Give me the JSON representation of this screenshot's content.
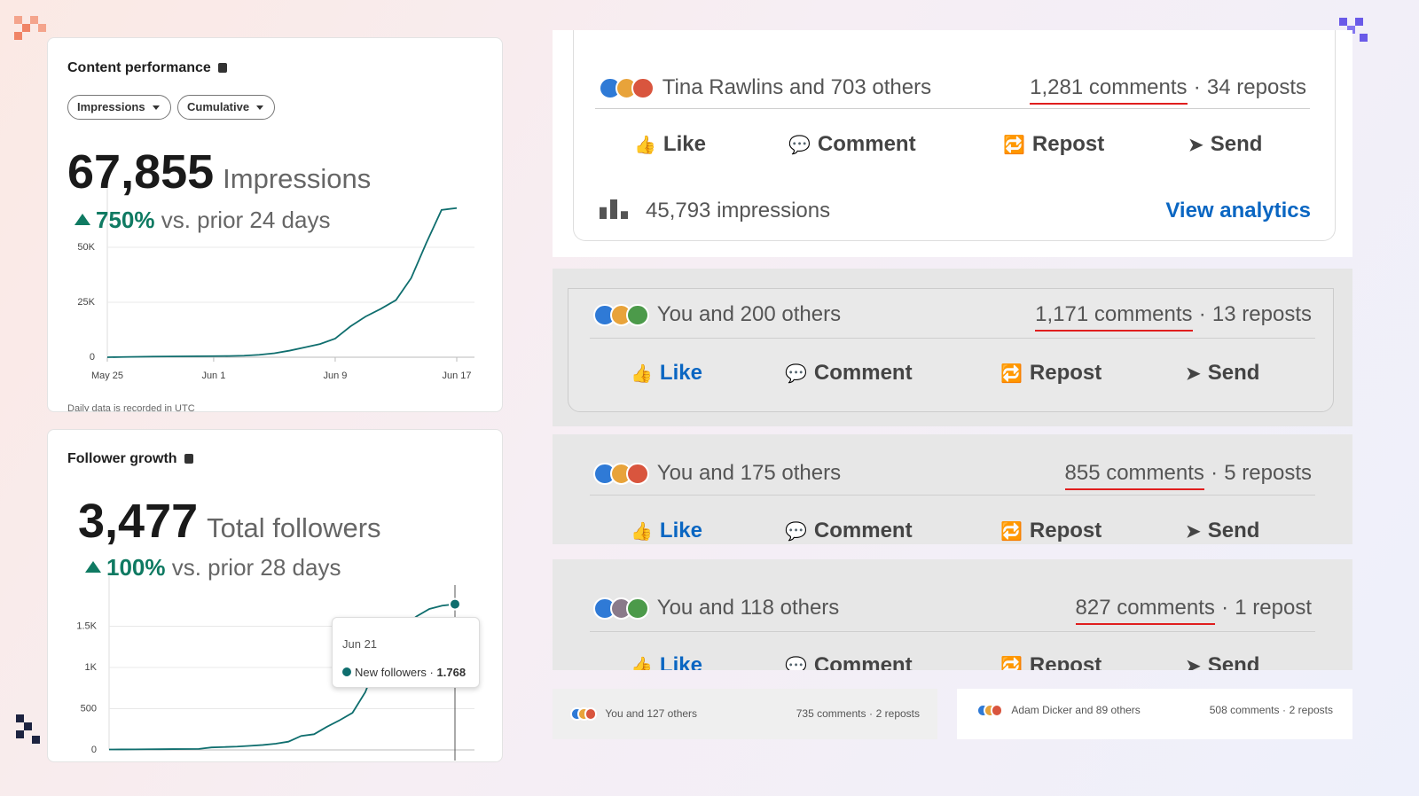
{
  "chart_data": [
    {
      "type": "line",
      "title": "Content performance",
      "controls": [
        "Impressions",
        "Cumulative"
      ],
      "total": "67,855",
      "total_label": "Impressions",
      "change": "750%",
      "change_label": "vs. prior 24 days",
      "categories": [
        "May 25",
        null,
        null,
        null,
        null,
        null,
        null,
        "Jun 1",
        null,
        null,
        null,
        null,
        null,
        null,
        null,
        "Jun 9",
        null,
        null,
        null,
        null,
        null,
        null,
        null,
        "Jun 17"
      ],
      "values": [
        0,
        100,
        200,
        300,
        350,
        400,
        450,
        500,
        550,
        700,
        1100,
        1800,
        3000,
        4500,
        6000,
        8500,
        14000,
        18500,
        22000,
        26000,
        36000,
        52000,
        67000,
        67855
      ],
      "color": "#0f6e6e",
      "ylim": [
        0,
        75000
      ],
      "yticks": [
        0,
        {
          "value": 25000,
          "label": "25K"
        },
        {
          "value": 50000,
          "label": "50K"
        }
      ],
      "grid": true,
      "note": "Daily data is recorded in UTC"
    },
    {
      "type": "line",
      "title": "Follower growth",
      "total": "3,477",
      "total_label": "Total followers",
      "change": "100%",
      "change_label": "vs. prior 28 days",
      "categories": [
        null,
        null,
        null,
        null,
        null,
        null,
        null,
        null,
        null,
        null,
        null,
        null,
        null,
        null,
        null,
        null,
        null,
        null,
        null,
        null,
        null,
        null,
        null,
        null,
        null,
        null,
        null,
        "Jun 21"
      ],
      "values": [
        5,
        6,
        7,
        8,
        9,
        10,
        11,
        12,
        30,
        35,
        40,
        50,
        60,
        75,
        100,
        170,
        190,
        280,
        360,
        450,
        700,
        1100,
        1330,
        1500,
        1620,
        1710,
        1750,
        1768
      ],
      "color": "#0f6e6e",
      "ylim": [
        0,
        2000
      ],
      "yticks": [
        0,
        500,
        {
          "value": 1000,
          "label": "1K"
        },
        {
          "value": 1500,
          "label": "1.5K"
        }
      ],
      "grid": true,
      "tooltip": {
        "name": "New followers",
        "value": 1768,
        "value_label": "1.768"
      }
    }
  ],
  "separator": "·",
  "actions": [
    "Like",
    "Comment",
    "Repost",
    "Send"
  ],
  "posts": [
    {
      "reactions": "Tina Rawlins and 703 others",
      "comments": "1,281 comments",
      "reposts": "34 reposts",
      "impressions": "45,793 impressions",
      "link": "View analytics",
      "liked": false
    },
    {
      "reactions": "You and 200 others",
      "comments": "1,171 comments",
      "reposts": "13 reposts",
      "liked": true
    },
    {
      "reactions": "You and 175 others",
      "comments": "855 comments",
      "reposts": "5 reposts",
      "liked": true
    },
    {
      "reactions": "You and 118 others",
      "comments": "827 comments",
      "reposts": "1 repost",
      "liked": true
    },
    {
      "reactions": "You and 127 others",
      "comments": "735 comments",
      "reposts": "2 reposts"
    },
    {
      "reactions": "Adam Dicker and 89 others",
      "comments": "508 comments",
      "reposts": "2 reposts"
    }
  ]
}
